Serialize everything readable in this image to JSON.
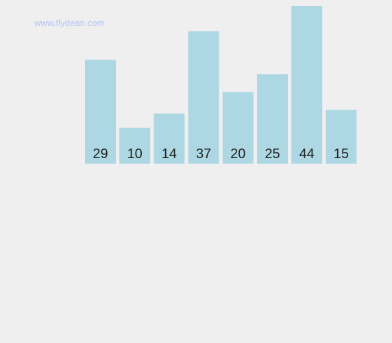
{
  "watermark": {
    "text": "www.flydean.com"
  },
  "colors": {
    "background": "#efeff0",
    "bar": "#add8e3",
    "label": "#1f1f1f",
    "watermark": "#b7c3f2"
  },
  "chart_data": {
    "type": "bar",
    "categories": [
      "29",
      "10",
      "14",
      "37",
      "20",
      "25",
      "44",
      "15"
    ],
    "values": [
      29,
      10,
      14,
      37,
      20,
      25,
      44,
      15
    ],
    "title": "",
    "xlabel": "",
    "ylabel": "",
    "ylim": [
      0,
      44
    ],
    "grid": false,
    "axes_visible": false,
    "data_labels": true
  }
}
